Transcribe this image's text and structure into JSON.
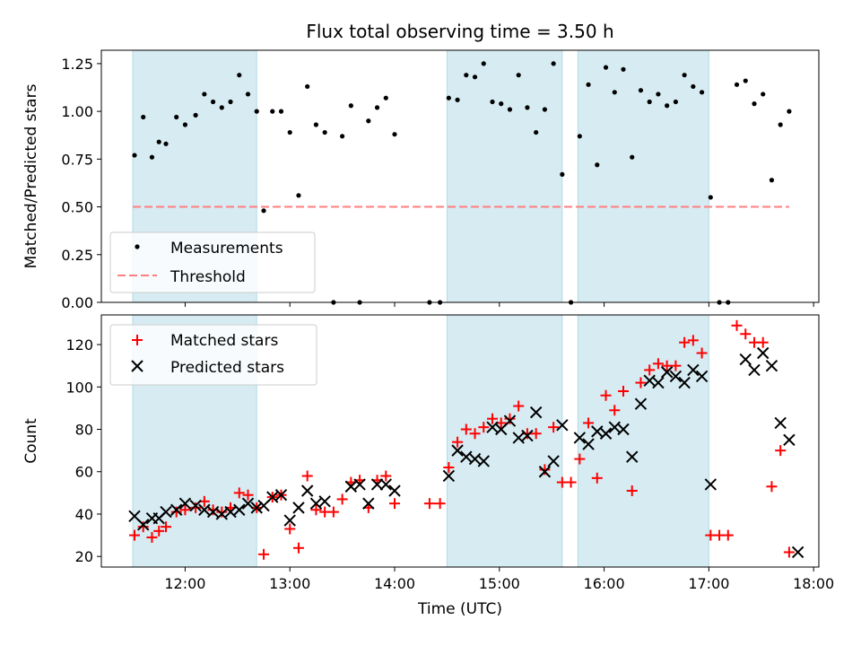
{
  "figure_title": "Flux total observing time = 3.50 h",
  "colors": {
    "shade": "#add8e6",
    "measurement": "#000000",
    "threshold": "#ff7f7f",
    "matched": "#ff0000",
    "predicted": "#000000"
  },
  "chart_data": [
    {
      "type": "scatter",
      "title": "Flux total observing time = 3.50 h",
      "xlabel": "",
      "ylabel": "Matched/Predicted stars",
      "xlim": [
        "11:12",
        "18:03"
      ],
      "ylim": [
        0,
        1.32
      ],
      "yticks": [
        "0.00",
        "0.25",
        "0.50",
        "0.75",
        "1.00",
        "1.25"
      ],
      "xticks": [
        "12:00",
        "13:00",
        "14:00",
        "15:00",
        "16:00",
        "17:00",
        "18:00"
      ],
      "shaded_intervals": [
        [
          "11:30",
          "12:41"
        ],
        [
          "14:30",
          "15:36"
        ],
        [
          "15:45",
          "17:00"
        ]
      ],
      "legend_position": "lower-left",
      "series": [
        {
          "name": "Measurements",
          "marker": "dot",
          "points": [
            [
              "11:31",
              0.77
            ],
            [
              "11:36",
              0.97
            ],
            [
              "11:41",
              0.76
            ],
            [
              "11:45",
              0.84
            ],
            [
              "11:49",
              0.83
            ],
            [
              "11:55",
              0.97
            ],
            [
              "12:00",
              0.93
            ],
            [
              "12:06",
              0.98
            ],
            [
              "12:11",
              1.09
            ],
            [
              "12:16",
              1.05
            ],
            [
              "12:21",
              1.02
            ],
            [
              "12:26",
              1.05
            ],
            [
              "12:31",
              1.19
            ],
            [
              "12:36",
              1.09
            ],
            [
              "12:41",
              1.0
            ],
            [
              "12:45",
              0.48
            ],
            [
              "12:50",
              1.0
            ],
            [
              "12:55",
              1.0
            ],
            [
              "13:00",
              0.89
            ],
            [
              "13:05",
              0.56
            ],
            [
              "13:10",
              1.13
            ],
            [
              "13:15",
              0.93
            ],
            [
              "13:20",
              0.89
            ],
            [
              "13:25",
              0.0
            ],
            [
              "13:30",
              0.87
            ],
            [
              "13:35",
              1.03
            ],
            [
              "13:40",
              0.0
            ],
            [
              "13:45",
              0.95
            ],
            [
              "13:50",
              1.02
            ],
            [
              "13:55",
              1.07
            ],
            [
              "14:00",
              0.88
            ],
            [
              "14:20",
              0.0
            ],
            [
              "14:26",
              0.0
            ],
            [
              "14:31",
              1.07
            ],
            [
              "14:36",
              1.06
            ],
            [
              "14:41",
              1.19
            ],
            [
              "14:46",
              1.18
            ],
            [
              "14:51",
              1.25
            ],
            [
              "14:56",
              1.05
            ],
            [
              "15:01",
              1.04
            ],
            [
              "15:06",
              1.01
            ],
            [
              "15:11",
              1.19
            ],
            [
              "15:16",
              1.02
            ],
            [
              "15:21",
              0.89
            ],
            [
              "15:26",
              1.01
            ],
            [
              "15:31",
              1.25
            ],
            [
              "15:36",
              0.67
            ],
            [
              "15:41",
              0.0
            ],
            [
              "15:46",
              0.87
            ],
            [
              "15:51",
              1.14
            ],
            [
              "15:56",
              0.72
            ],
            [
              "16:01",
              1.23
            ],
            [
              "16:06",
              1.1
            ],
            [
              "16:11",
              1.22
            ],
            [
              "16:16",
              0.76
            ],
            [
              "16:21",
              1.11
            ],
            [
              "16:26",
              1.05
            ],
            [
              "16:31",
              1.09
            ],
            [
              "16:36",
              1.03
            ],
            [
              "16:41",
              1.05
            ],
            [
              "16:46",
              1.19
            ],
            [
              "16:51",
              1.13
            ],
            [
              "16:56",
              1.1
            ],
            [
              "17:01",
              0.55
            ],
            [
              "17:06",
              0.0
            ],
            [
              "17:11",
              0.0
            ],
            [
              "17:16",
              1.14
            ],
            [
              "17:21",
              1.16
            ],
            [
              "17:26",
              1.04
            ],
            [
              "17:31",
              1.09
            ],
            [
              "17:36",
              0.64
            ],
            [
              "17:41",
              0.93
            ],
            [
              "17:46",
              1.0
            ]
          ]
        },
        {
          "name": "Threshold",
          "marker": "dashed-line",
          "points": [
            [
              "11:30",
              0.5
            ],
            [
              "17:46",
              0.5
            ]
          ]
        }
      ]
    },
    {
      "type": "scatter",
      "title": "",
      "xlabel": "Time (UTC)",
      "ylabel": "Count",
      "xlim": [
        "11:12",
        "18:03"
      ],
      "ylim": [
        15,
        134
      ],
      "yticks": [
        "20",
        "40",
        "60",
        "80",
        "100",
        "120"
      ],
      "xticks": [
        "12:00",
        "13:00",
        "14:00",
        "15:00",
        "16:00",
        "17:00",
        "18:00"
      ],
      "shaded_intervals": [
        [
          "11:30",
          "12:41"
        ],
        [
          "14:30",
          "15:36"
        ],
        [
          "15:45",
          "17:00"
        ]
      ],
      "legend_position": "upper-left",
      "series": [
        {
          "name": "Matched stars",
          "marker": "plus",
          "points": [
            [
              "11:31",
              30
            ],
            [
              "11:36",
              34
            ],
            [
              "11:41",
              29
            ],
            [
              "11:45",
              32
            ],
            [
              "11:49",
              34
            ],
            [
              "11:55",
              41
            ],
            [
              "12:00",
              42
            ],
            [
              "12:06",
              43
            ],
            [
              "12:11",
              46
            ],
            [
              "12:16",
              42
            ],
            [
              "12:21",
              41
            ],
            [
              "12:26",
              43
            ],
            [
              "12:31",
              50
            ],
            [
              "12:36",
              49
            ],
            [
              "12:41",
              43
            ],
            [
              "12:45",
              21
            ],
            [
              "12:50",
              48
            ],
            [
              "12:55",
              49
            ],
            [
              "13:00",
              33
            ],
            [
              "13:05",
              24
            ],
            [
              "13:10",
              58
            ],
            [
              "13:15",
              42
            ],
            [
              "13:20",
              41
            ],
            [
              "13:25",
              41
            ],
            [
              "13:30",
              47
            ],
            [
              "13:35",
              55
            ],
            [
              "13:40",
              56
            ],
            [
              "13:45",
              43
            ],
            [
              "13:50",
              56
            ],
            [
              "13:55",
              58
            ],
            [
              "14:00",
              45
            ],
            [
              "14:20",
              45
            ],
            [
              "14:26",
              45
            ],
            [
              "14:31",
              62
            ],
            [
              "14:36",
              74
            ],
            [
              "14:41",
              80
            ],
            [
              "14:46",
              78
            ],
            [
              "14:51",
              81
            ],
            [
              "14:56",
              85
            ],
            [
              "15:01",
              83
            ],
            [
              "15:06",
              85
            ],
            [
              "15:11",
              91
            ],
            [
              "15:16",
              78
            ],
            [
              "15:21",
              78
            ],
            [
              "15:26",
              61
            ],
            [
              "15:31",
              81
            ],
            [
              "15:36",
              55
            ],
            [
              "15:41",
              55
            ],
            [
              "15:46",
              66
            ],
            [
              "15:51",
              83
            ],
            [
              "15:56",
              57
            ],
            [
              "16:01",
              96
            ],
            [
              "16:06",
              89
            ],
            [
              "16:11",
              98
            ],
            [
              "16:16",
              51
            ],
            [
              "16:21",
              102
            ],
            [
              "16:26",
              108
            ],
            [
              "16:31",
              111
            ],
            [
              "16:36",
              110
            ],
            [
              "16:41",
              110
            ],
            [
              "16:46",
              121
            ],
            [
              "16:51",
              122
            ],
            [
              "16:56",
              116
            ],
            [
              "17:01",
              30
            ],
            [
              "17:06",
              30
            ],
            [
              "17:11",
              30
            ],
            [
              "17:16",
              129
            ],
            [
              "17:21",
              125
            ],
            [
              "17:26",
              121
            ],
            [
              "17:31",
              121
            ],
            [
              "17:36",
              53
            ],
            [
              "17:41",
              70
            ],
            [
              "17:46",
              22
            ]
          ]
        },
        {
          "name": "Predicted stars",
          "marker": "x",
          "points": [
            [
              "11:31",
              39
            ],
            [
              "11:36",
              35
            ],
            [
              "11:41",
              38
            ],
            [
              "11:45",
              38
            ],
            [
              "11:49",
              41
            ],
            [
              "11:55",
              42
            ],
            [
              "12:00",
              45
            ],
            [
              "12:06",
              44
            ],
            [
              "12:11",
              42
            ],
            [
              "12:16",
              41
            ],
            [
              "12:21",
              40
            ],
            [
              "12:26",
              41
            ],
            [
              "12:31",
              42
            ],
            [
              "12:36",
              45
            ],
            [
              "12:41",
              43
            ],
            [
              "12:45",
              44
            ],
            [
              "12:50",
              48
            ],
            [
              "12:55",
              49
            ],
            [
              "13:00",
              37
            ],
            [
              "13:05",
              43
            ],
            [
              "13:10",
              51
            ],
            [
              "13:15",
              45
            ],
            [
              "13:20",
              46
            ],
            [
              "13:35",
              53
            ],
            [
              "13:40",
              54
            ],
            [
              "13:45",
              45
            ],
            [
              "13:50",
              54
            ],
            [
              "13:55",
              54
            ],
            [
              "14:00",
              51
            ],
            [
              "14:31",
              58
            ],
            [
              "14:36",
              70
            ],
            [
              "14:41",
              67
            ],
            [
              "14:46",
              66
            ],
            [
              "14:51",
              65
            ],
            [
              "14:56",
              81
            ],
            [
              "15:01",
              80
            ],
            [
              "15:06",
              84
            ],
            [
              "15:11",
              76
            ],
            [
              "15:16",
              77
            ],
            [
              "15:21",
              88
            ],
            [
              "15:26",
              60
            ],
            [
              "15:31",
              65
            ],
            [
              "15:36",
              82
            ],
            [
              "15:46",
              76
            ],
            [
              "15:51",
              73
            ],
            [
              "15:56",
              79
            ],
            [
              "16:01",
              78
            ],
            [
              "16:06",
              81
            ],
            [
              "16:11",
              80
            ],
            [
              "16:16",
              67
            ],
            [
              "16:21",
              92
            ],
            [
              "16:26",
              103
            ],
            [
              "16:31",
              102
            ],
            [
              "16:36",
              107
            ],
            [
              "16:41",
              105
            ],
            [
              "16:46",
              102
            ],
            [
              "16:51",
              108
            ],
            [
              "16:56",
              105
            ],
            [
              "17:01",
              54
            ],
            [
              "17:21",
              113
            ],
            [
              "17:26",
              108
            ],
            [
              "17:31",
              116
            ],
            [
              "17:36",
              110
            ],
            [
              "17:41",
              83
            ],
            [
              "17:46",
              75
            ],
            [
              "17:51",
              22
            ]
          ]
        }
      ]
    }
  ]
}
